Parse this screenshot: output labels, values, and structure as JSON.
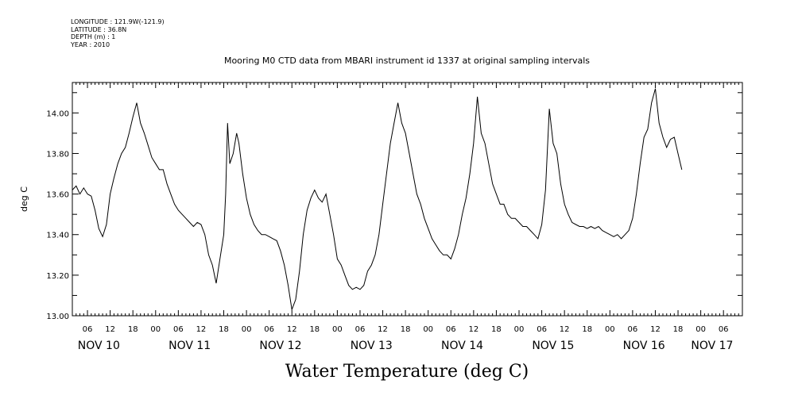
{
  "header": {
    "meta_lines": [
      "LONGITUDE : 121.9W(-121.9)",
      "LATITUDE : 36.8N",
      "DEPTH (m) : 1",
      "YEAR : 2010"
    ]
  },
  "chart_data": {
    "type": "line",
    "title": "Mooring M0 CTD data from MBARI instrument id 1337 at original sampling intervals",
    "xlabel": "Water Temperature (deg C)",
    "ylabel": "deg C",
    "ylim": [
      13.0,
      14.15
    ],
    "xlim": [
      2,
      179
    ],
    "x_units": "hours since 00:00 NOV 10, 2010",
    "yticks": [
      "13.00",
      "13.20",
      "13.40",
      "13.60",
      "13.80",
      "14.00"
    ],
    "ytick_values": [
      13.0,
      13.2,
      13.4,
      13.6,
      13.8,
      14.0
    ],
    "xtick_hours": [
      6,
      12,
      18,
      24,
      30,
      36,
      42,
      48,
      54,
      60,
      66,
      72,
      78,
      84,
      90,
      96,
      102,
      108,
      114,
      120,
      126,
      132,
      138,
      144,
      150,
      156,
      162,
      168,
      174
    ],
    "xtick_labels": [
      "06",
      "12",
      "18",
      "00",
      "06",
      "12",
      "18",
      "00",
      "06",
      "12",
      "18",
      "00",
      "06",
      "12",
      "18",
      "00",
      "06",
      "12",
      "18",
      "00",
      "06",
      "12",
      "18",
      "00",
      "06",
      "12",
      "18",
      "00",
      "06"
    ],
    "day_labels": [
      {
        "text": "NOV 10",
        "hour": 9
      },
      {
        "text": "NOV 11",
        "hour": 33
      },
      {
        "text": "NOV 12",
        "hour": 57
      },
      {
        "text": "NOV 13",
        "hour": 81
      },
      {
        "text": "NOV 14",
        "hour": 105
      },
      {
        "text": "NOV 15",
        "hour": 129
      },
      {
        "text": "NOV 16",
        "hour": 153
      },
      {
        "text": "NOV 17",
        "hour": 171
      }
    ],
    "grid": false,
    "series": [
      {
        "color": "#000000",
        "points": [
          [
            2,
            13.62
          ],
          [
            3,
            13.64
          ],
          [
            4,
            13.6
          ],
          [
            5,
            13.63
          ],
          [
            6,
            13.6
          ],
          [
            7,
            13.59
          ],
          [
            8,
            13.52
          ],
          [
            9,
            13.43
          ],
          [
            10,
            13.39
          ],
          [
            11,
            13.45
          ],
          [
            12,
            13.6
          ],
          [
            13,
            13.68
          ],
          [
            14,
            13.75
          ],
          [
            15,
            13.8
          ],
          [
            16,
            13.83
          ],
          [
            17,
            13.9
          ],
          [
            18,
            13.98
          ],
          [
            19,
            14.05
          ],
          [
            20,
            13.95
          ],
          [
            21,
            13.9
          ],
          [
            22,
            13.84
          ],
          [
            23,
            13.78
          ],
          [
            24,
            13.75
          ],
          [
            25,
            13.72
          ],
          [
            26,
            13.72
          ],
          [
            27,
            13.65
          ],
          [
            28,
            13.6
          ],
          [
            29,
            13.55
          ],
          [
            30,
            13.52
          ],
          [
            31,
            13.5
          ],
          [
            32,
            13.48
          ],
          [
            33,
            13.46
          ],
          [
            34,
            13.44
          ],
          [
            35,
            13.46
          ],
          [
            36,
            13.45
          ],
          [
            37,
            13.4
          ],
          [
            38,
            13.3
          ],
          [
            39,
            13.25
          ],
          [
            40,
            13.16
          ],
          [
            41,
            13.28
          ],
          [
            42,
            13.4
          ],
          [
            42.5,
            13.6
          ],
          [
            43,
            13.95
          ],
          [
            43.6,
            13.75
          ],
          [
            44.5,
            13.8
          ],
          [
            45.4,
            13.9
          ],
          [
            46,
            13.85
          ],
          [
            47,
            13.7
          ],
          [
            48,
            13.58
          ],
          [
            49,
            13.5
          ],
          [
            50,
            13.45
          ],
          [
            51,
            13.42
          ],
          [
            52,
            13.4
          ],
          [
            53,
            13.4
          ],
          [
            54,
            13.39
          ],
          [
            55,
            13.38
          ],
          [
            56,
            13.37
          ],
          [
            57,
            13.32
          ],
          [
            58,
            13.25
          ],
          [
            59,
            13.15
          ],
          [
            60,
            13.03
          ],
          [
            61,
            13.08
          ],
          [
            62,
            13.22
          ],
          [
            63,
            13.4
          ],
          [
            64,
            13.52
          ],
          [
            65,
            13.58
          ],
          [
            66,
            13.62
          ],
          [
            67,
            13.58
          ],
          [
            68,
            13.56
          ],
          [
            69,
            13.6
          ],
          [
            70,
            13.5
          ],
          [
            71,
            13.4
          ],
          [
            72,
            13.28
          ],
          [
            73,
            13.25
          ],
          [
            74,
            13.2
          ],
          [
            75,
            13.15
          ],
          [
            76,
            13.13
          ],
          [
            77,
            13.14
          ],
          [
            78,
            13.13
          ],
          [
            79,
            13.15
          ],
          [
            80,
            13.22
          ],
          [
            81,
            13.25
          ],
          [
            82,
            13.3
          ],
          [
            83,
            13.4
          ],
          [
            84,
            13.55
          ],
          [
            85,
            13.7
          ],
          [
            86,
            13.85
          ],
          [
            87,
            13.95
          ],
          [
            88,
            14.05
          ],
          [
            89,
            13.95
          ],
          [
            90,
            13.9
          ],
          [
            91,
            13.8
          ],
          [
            92,
            13.7
          ],
          [
            93,
            13.6
          ],
          [
            94,
            13.55
          ],
          [
            95,
            13.48
          ],
          [
            96,
            13.43
          ],
          [
            97,
            13.38
          ],
          [
            98,
            13.35
          ],
          [
            99,
            13.32
          ],
          [
            100,
            13.3
          ],
          [
            101,
            13.3
          ],
          [
            102,
            13.28
          ],
          [
            103,
            13.33
          ],
          [
            104,
            13.4
          ],
          [
            105,
            13.5
          ],
          [
            106,
            13.58
          ],
          [
            107,
            13.7
          ],
          [
            108,
            13.85
          ],
          [
            109,
            14.08
          ],
          [
            110,
            13.9
          ],
          [
            111,
            13.85
          ],
          [
            112,
            13.75
          ],
          [
            113,
            13.65
          ],
          [
            114,
            13.6
          ],
          [
            115,
            13.55
          ],
          [
            116,
            13.55
          ],
          [
            117,
            13.5
          ],
          [
            118,
            13.48
          ],
          [
            119,
            13.48
          ],
          [
            120,
            13.46
          ],
          [
            121,
            13.44
          ],
          [
            122,
            13.44
          ],
          [
            123,
            13.42
          ],
          [
            124,
            13.4
          ],
          [
            125,
            13.38
          ],
          [
            126,
            13.45
          ],
          [
            127,
            13.62
          ],
          [
            128,
            14.02
          ],
          [
            129,
            13.85
          ],
          [
            130,
            13.8
          ],
          [
            131,
            13.65
          ],
          [
            132,
            13.55
          ],
          [
            133,
            13.5
          ],
          [
            134,
            13.46
          ],
          [
            135,
            13.45
          ],
          [
            136,
            13.44
          ],
          [
            137,
            13.44
          ],
          [
            138,
            13.43
          ],
          [
            139,
            13.44
          ],
          [
            140,
            13.43
          ],
          [
            141,
            13.44
          ],
          [
            142,
            13.42
          ],
          [
            143,
            13.41
          ],
          [
            144,
            13.4
          ],
          [
            145,
            13.39
          ],
          [
            146,
            13.4
          ],
          [
            147,
            13.38
          ],
          [
            148,
            13.4
          ],
          [
            149,
            13.42
          ],
          [
            150,
            13.48
          ],
          [
            151,
            13.6
          ],
          [
            152,
            13.75
          ],
          [
            153,
            13.88
          ],
          [
            154,
            13.92
          ],
          [
            155,
            14.05
          ],
          [
            156,
            14.12
          ],
          [
            157,
            13.95
          ],
          [
            158,
            13.88
          ],
          [
            159,
            13.83
          ],
          [
            160,
            13.87
          ],
          [
            161,
            13.88
          ],
          [
            162,
            13.8
          ],
          [
            163,
            13.72
          ]
        ]
      }
    ]
  }
}
